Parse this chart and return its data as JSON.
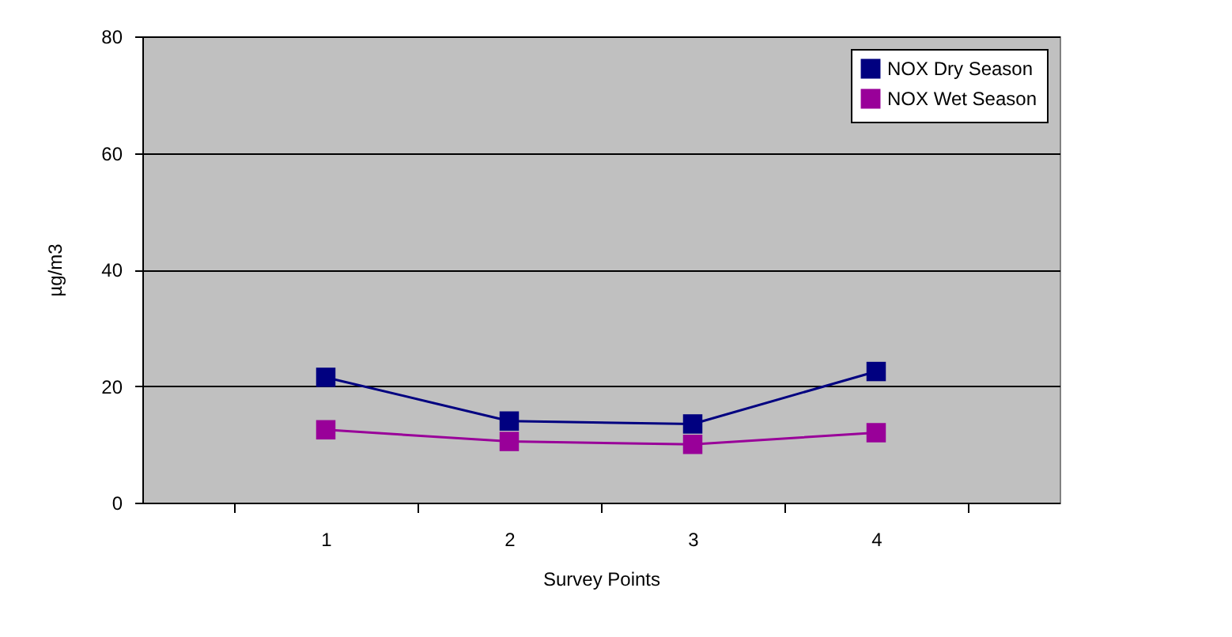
{
  "chart_data": {
    "type": "line",
    "xlabel": "Survey Points",
    "ylabel": "µg/m3",
    "categories": [
      "1",
      "2",
      "3",
      "4"
    ],
    "series": [
      {
        "name": "NOX Dry Season",
        "color": "#000080",
        "values": [
          21.5,
          14,
          13.5,
          22.5
        ]
      },
      {
        "name": "NOX Wet Season",
        "color": "#990099",
        "values": [
          12.5,
          10.5,
          10,
          12
        ]
      }
    ],
    "ylim": [
      0,
      80
    ],
    "yticks": [
      0,
      20,
      40,
      60,
      80
    ],
    "grid": "y",
    "legend": "top right",
    "marker": "square",
    "line_style": "solid"
  }
}
